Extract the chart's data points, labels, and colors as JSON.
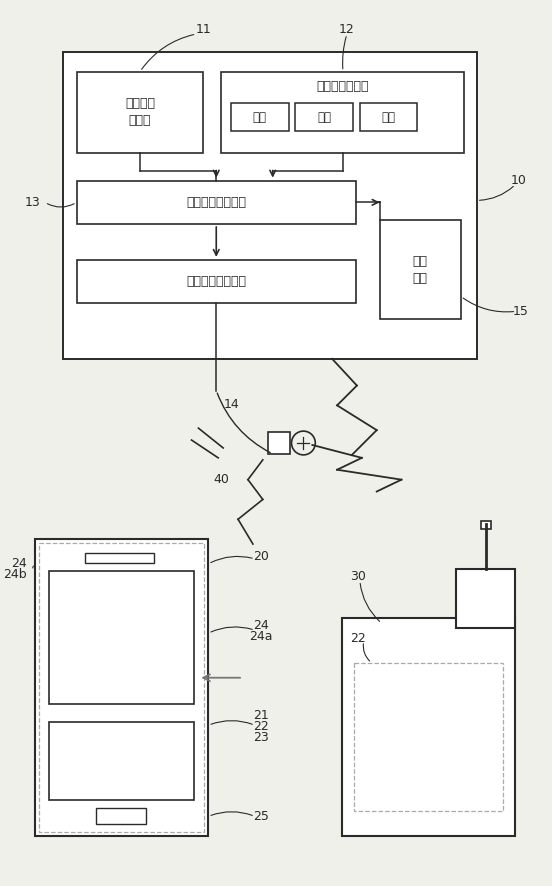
{
  "bg_color": "#f0f0ea",
  "line_color": "#2a2a2a",
  "box_fill": "#ffffff",
  "fig_width": 5.52,
  "fig_height": 8.86,
  "labels": {
    "11": "11",
    "12": "12",
    "13": "13",
    "14": "14",
    "15": "15",
    "10": "10",
    "20": "20",
    "21": "21",
    "22": "22",
    "23": "23",
    "24": "24",
    "24a": "24a",
    "24b": "24b",
    "25": "25",
    "30": "30",
    "40": "40",
    "gas_sensor": "气体检测\n传感器",
    "env_sensor": "环境检测传感器",
    "temp": "温度",
    "humidity": "湿度",
    "dust": "微尘",
    "judge": "空气质量判断模块",
    "comm": "空气质量通信模块",
    "notify": "通知\n模块"
  }
}
